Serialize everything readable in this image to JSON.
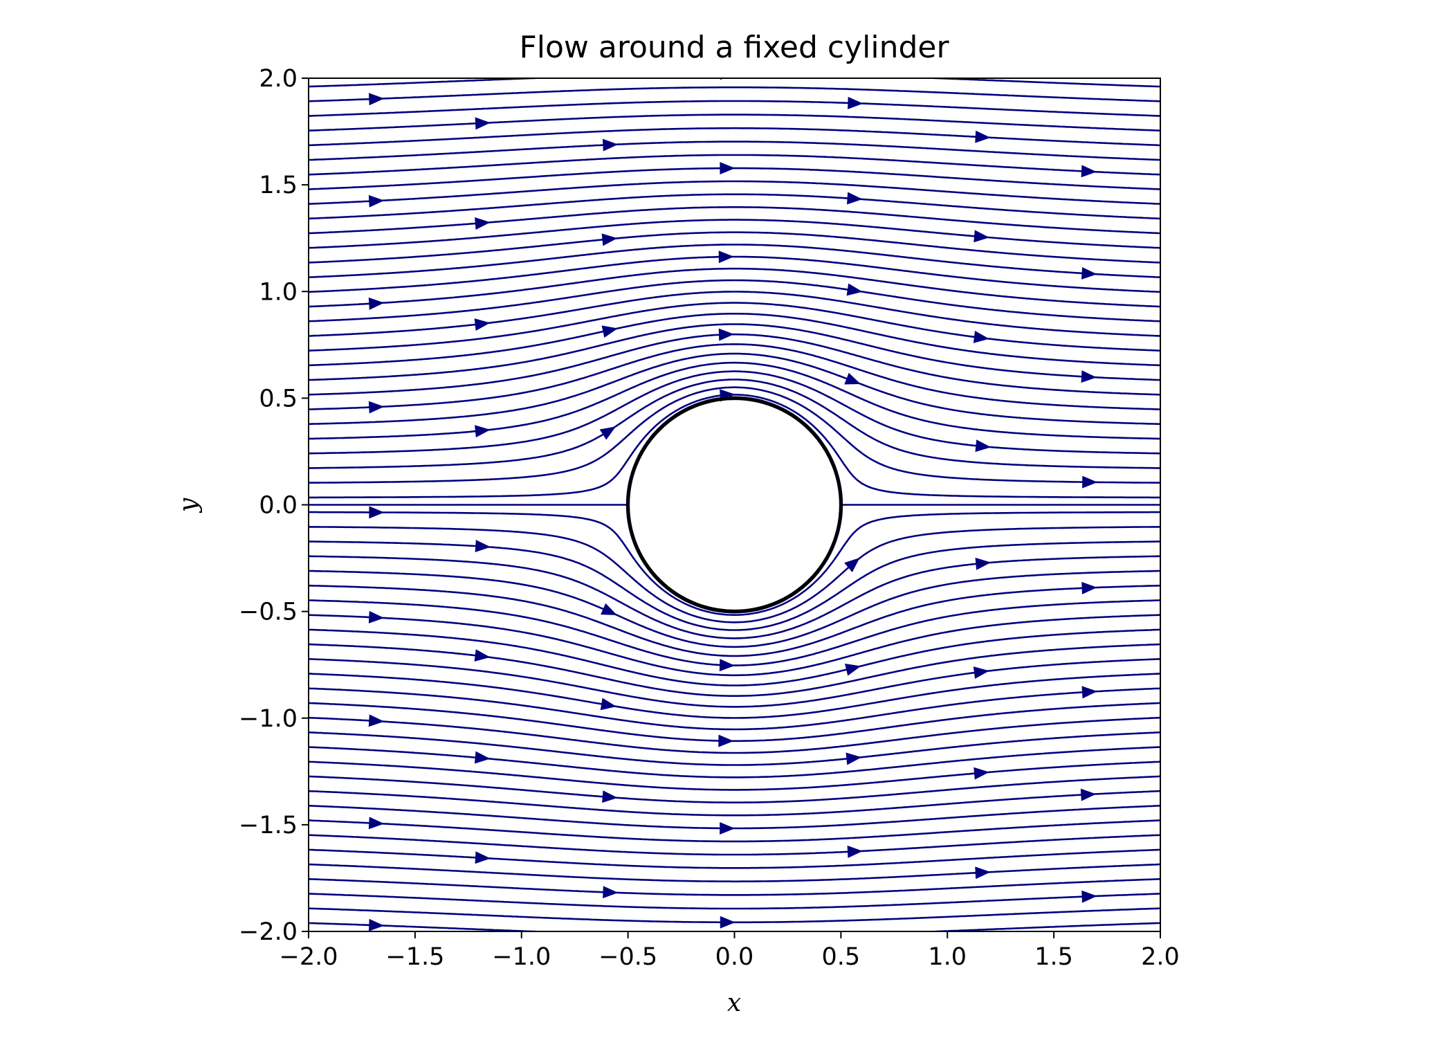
{
  "chart_data": {
    "type": "streamplot",
    "title": "Flow around a fixed cylinder",
    "xlabel": "x",
    "ylabel": "y",
    "xlim": [
      -2.0,
      2.0
    ],
    "ylim": [
      -2.0,
      2.0
    ],
    "x_ticks": [
      "−2.0",
      "−1.5",
      "−1.0",
      "−0.5",
      "0.0",
      "0.5",
      "1.0",
      "1.5",
      "2.0"
    ],
    "x_tick_values": [
      -2.0,
      -1.5,
      -1.0,
      -0.5,
      0.0,
      0.5,
      1.0,
      1.5,
      2.0
    ],
    "y_ticks": [
      "−2.0",
      "−1.5",
      "−1.0",
      "−0.5",
      "0.0",
      "0.5",
      "1.0",
      "1.5",
      "2.0"
    ],
    "y_tick_values": [
      -2.0,
      -1.5,
      -1.0,
      -0.5,
      0.0,
      0.5,
      1.0,
      1.5,
      2.0
    ],
    "cylinder": {
      "center": [
        0.0,
        0.0
      ],
      "radius": 0.5,
      "color": "#000000"
    },
    "flow": {
      "model": "potential flow, uniform stream past cylinder",
      "free_stream_velocity": 1.0,
      "direction": "+x"
    },
    "streamline_color": "#00007f",
    "grid": false
  }
}
